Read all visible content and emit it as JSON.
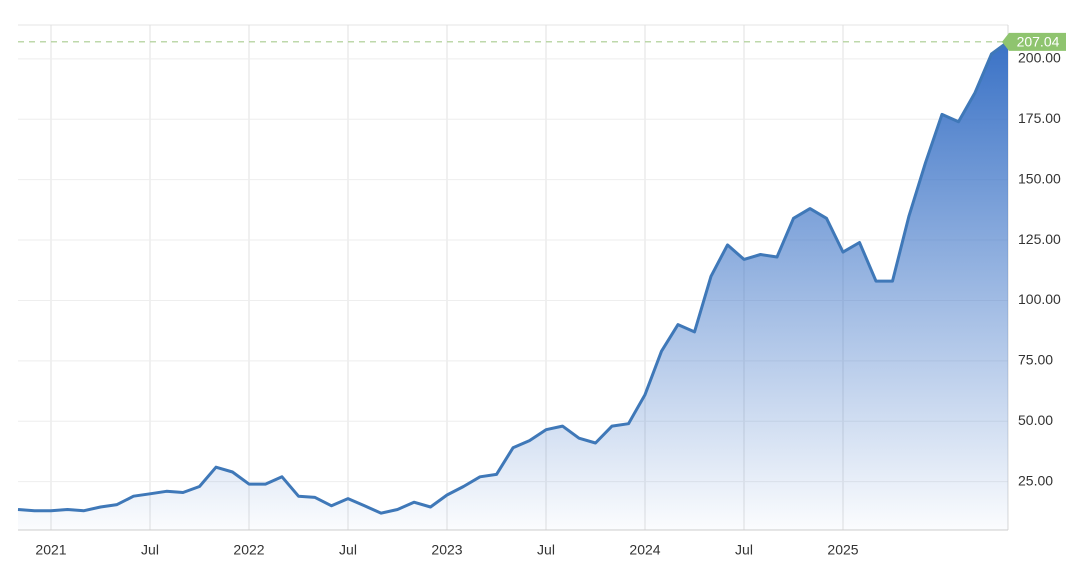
{
  "chart_data": {
    "type": "area",
    "x": [
      "2020-11",
      "2020-12",
      "2021-01",
      "2021-02",
      "2021-03",
      "2021-04",
      "2021-05",
      "2021-06",
      "2021-07",
      "2021-08",
      "2021-09",
      "2021-10",
      "2021-11",
      "2021-12",
      "2022-01",
      "2022-02",
      "2022-03",
      "2022-04",
      "2022-05",
      "2022-06",
      "2022-07",
      "2022-08",
      "2022-09",
      "2022-10",
      "2022-11",
      "2022-12",
      "2023-01",
      "2023-02",
      "2023-03",
      "2023-04",
      "2023-05",
      "2023-06",
      "2023-07",
      "2023-08",
      "2023-09",
      "2023-10",
      "2023-11",
      "2023-12",
      "2024-01",
      "2024-02",
      "2024-03",
      "2024-04",
      "2024-05",
      "2024-06",
      "2024-07",
      "2024-08",
      "2024-09",
      "2024-10",
      "2024-11",
      "2024-12",
      "2025-01",
      "2025-02",
      "2025-03",
      "2025-04",
      "2025-05",
      "2025-06",
      "2025-07",
      "2025-08",
      "2025-09",
      "2025-10",
      "2025-11"
    ],
    "series": [
      {
        "color": "#3f78b8",
        "values": [
          13.5,
          13,
          13,
          13.5,
          13,
          14.5,
          15.5,
          19,
          20,
          21,
          20.5,
          23,
          31,
          29,
          24,
          24,
          27,
          19,
          18.5,
          15,
          18,
          15,
          12,
          13.5,
          16.5,
          14.5,
          19.5,
          23,
          27,
          28,
          39,
          42,
          46.5,
          48,
          43,
          41,
          48,
          49,
          61,
          79,
          90,
          87,
          110,
          123,
          117,
          119,
          118,
          134,
          138,
          134,
          120,
          124,
          108,
          108,
          135,
          157,
          177,
          174,
          186,
          202,
          207.04
        ]
      }
    ],
    "xlim": [
      "2020-11",
      "2025-11"
    ],
    "xticks": [
      {
        "value": "2021-01",
        "label": "2021"
      },
      {
        "value": "2021-07",
        "label": "Jul"
      },
      {
        "value": "2022-01",
        "label": "2022"
      },
      {
        "value": "2022-07",
        "label": "Jul"
      },
      {
        "value": "2023-01",
        "label": "2023"
      },
      {
        "value": "2023-07",
        "label": "Jul"
      },
      {
        "value": "2024-01",
        "label": "2024"
      },
      {
        "value": "2024-07",
        "label": "Jul"
      },
      {
        "value": "2025-01",
        "label": "2025"
      }
    ],
    "ylim": [
      5,
      214
    ],
    "yticks": [
      {
        "value": 25,
        "label": "25.00"
      },
      {
        "value": 50,
        "label": "50.00"
      },
      {
        "value": 75,
        "label": "75.00"
      },
      {
        "value": 100,
        "label": "100.00"
      },
      {
        "value": 125,
        "label": "125.00"
      },
      {
        "value": 150,
        "label": "150.00"
      },
      {
        "value": 175,
        "label": "175.00"
      },
      {
        "value": 200,
        "label": "200.00"
      }
    ],
    "grid": true
  }
}
